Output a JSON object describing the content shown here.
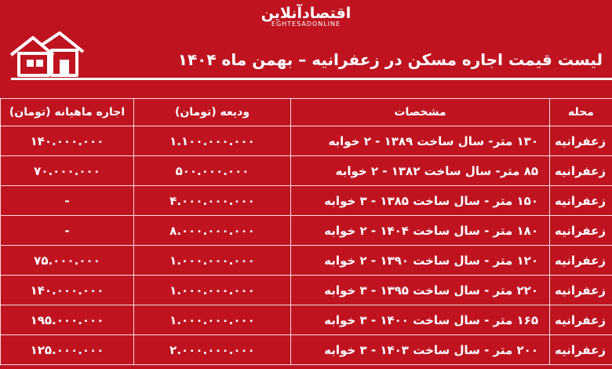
{
  "header": {
    "brand": "اقتصادآنلاین",
    "brand_latin": "EGHTESADONLINE",
    "title": "لیست قیمت اجاره مسکن در زعفرانیه – بهمن ماه ۱۴۰۴"
  },
  "table": {
    "columns": [
      "محله",
      "مشخصات",
      "ودیعه (تومان)",
      "اجاره ماهیانه (تومان)"
    ],
    "rows": [
      [
        "زعفرانیه",
        "۱۳۰ متر- سال ساخت ۱۳۸۹ - ۲ خوابه",
        "۱.۱۰۰.۰۰۰.۰۰۰",
        "۱۴۰.۰۰۰.۰۰۰"
      ],
      [
        "زعفرانیه",
        "۸۵ متر- سال ساخت ۱۳۸۲ - ۲ خوابه",
        "۵۰۰.۰۰۰.۰۰۰",
        "۷۰.۰۰۰.۰۰۰"
      ],
      [
        "زعفرانیه",
        "۱۵۰ متر - سال ساخت ۱۳۸۵ - ۳ خوابه",
        "۴.۰۰۰.۰۰۰.۰۰۰",
        "-"
      ],
      [
        "زعفرانیه",
        "۱۸۰ متر - سال ساخت ۱۴۰۴ - ۲ خوابه",
        "۸.۰۰۰.۰۰۰.۰۰۰",
        "-"
      ],
      [
        "زعفرانیه",
        "۱۲۰ متر - سال ساخت ۱۳۹۰ - ۲ خوابه",
        "۱.۰۰۰.۰۰۰.۰۰۰",
        "۷۵.۰۰۰.۰۰۰"
      ],
      [
        "زعفرانیه",
        "۲۲۰ متر - سال ساخت ۱۳۹۵ - ۳ خوابه",
        "۱.۰۰۰.۰۰۰.۰۰۰",
        "۱۴۰.۰۰۰.۰۰۰"
      ],
      [
        "زعفرانیه",
        "۱۶۵ متر - سال ساخت ۱۴۰۰ - ۳ خوابه",
        "۱.۰۰۰.۰۰۰.۰۰۰",
        "۱۹۵.۰۰۰.۰۰۰"
      ],
      [
        "زعفرانیه",
        "۲۰۰ متر - سال ساخت ۱۴۰۳ - ۳ خوابه",
        "۲.۰۰۰.۰۰۰.۰۰۰",
        "۱۲۵.۰۰۰.۰۰۰"
      ]
    ]
  }
}
